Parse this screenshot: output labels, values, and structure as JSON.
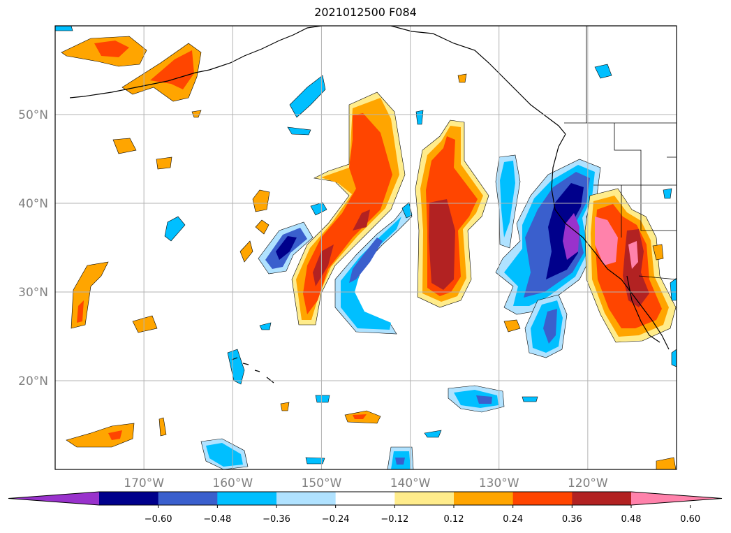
{
  "title": "2021012500 F084",
  "map": {
    "lat_range": [
      10,
      60
    ],
    "lon_range": [
      -180,
      -110
    ],
    "lat_ticks": [
      {
        "value": 20,
        "label": "20°N"
      },
      {
        "value": 30,
        "label": "30°N"
      },
      {
        "value": 40,
        "label": "40°N"
      },
      {
        "value": 50,
        "label": "50°N"
      }
    ],
    "lon_ticks": [
      {
        "value": -170,
        "label": "170°W"
      },
      {
        "value": -160,
        "label": "160°W"
      },
      {
        "value": -150,
        "label": "150°W"
      },
      {
        "value": -140,
        "label": "140°W"
      },
      {
        "value": -130,
        "label": "130°W"
      },
      {
        "value": -120,
        "label": "120°W"
      }
    ],
    "grid": true
  },
  "colorbar": {
    "extend": "both",
    "colors": [
      "#9932cc",
      "#00008b",
      "#3a5fcd",
      "#00bfff",
      "#b0e2ff",
      "#ffffff",
      "#ffec8b",
      "#ffa500",
      "#ff4500",
      "#b22222",
      "#ff82ab"
    ],
    "tick_labels": [
      "−0.60",
      "−0.48",
      "−0.36",
      "−0.24",
      "−0.12",
      "0.12",
      "0.24",
      "0.36",
      "0.48",
      "0.60"
    ]
  }
}
